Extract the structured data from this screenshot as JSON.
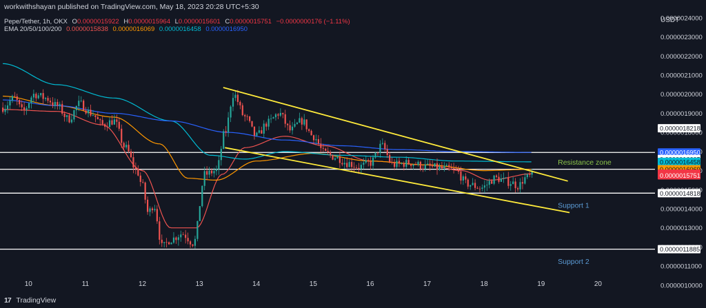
{
  "header": {
    "published": "workwithshayan published on TradingView.com, May 18, 2023 20:28 UTC+5:30",
    "symbol": "Pepe/Tether, 1h, OKX",
    "ohlc": [
      {
        "k": "O",
        "v": "0.0000015922"
      },
      {
        "k": "H",
        "v": "0.0000015964"
      },
      {
        "k": "L",
        "v": "0.0000015601"
      },
      {
        "k": "C",
        "v": "0.0000015751"
      }
    ],
    "change": "−0.0000000176 (−1.11%)",
    "ema_label": "EMA 20/50/100/200",
    "ema_values": [
      "0.0000015838",
      "0.0000016069",
      "0.0000016458",
      "0.0000016950"
    ],
    "currency": "USDT"
  },
  "footer": {
    "brand": "TradingView",
    "logo": "tradingview-logo-icon"
  },
  "colors": {
    "background": "#131722",
    "up": "#26a69a",
    "down": "#ef5350",
    "ema20": "#ef5350",
    "ema50": "#ff9800",
    "ema100": "#00bcd4",
    "ema200": "#2962ff",
    "channel": "#ffeb3b",
    "level": "#ffffff",
    "resistance_text": "#8bc34a",
    "support_text": "#5b9bd5"
  },
  "chart_data": {
    "type": "candlestick",
    "ylim": [
      1.05e-06,
      2.45e-06
    ],
    "xlim": [
      9.5,
      21.0
    ],
    "y_ticks": [
      "0.0000024000",
      "0.0000023000",
      "0.0000022000",
      "0.0000021000",
      "0.0000020000",
      "0.0000019000",
      "0.0000018000",
      "0.0000017000",
      "0.0000016000",
      "0.0000015000",
      "0.0000014000",
      "0.0000013000",
      "0.0000012000",
      "0.0000011000",
      "0.0000010000"
    ],
    "x_ticks": [
      {
        "label": "10",
        "x": 10
      },
      {
        "label": "11",
        "x": 11
      },
      {
        "label": "12",
        "x": 12
      },
      {
        "label": "13",
        "x": 13
      },
      {
        "label": "14",
        "x": 14
      },
      {
        "label": "15",
        "x": 15
      },
      {
        "label": "16",
        "x": 16
      },
      {
        "label": "17",
        "x": 17
      },
      {
        "label": "18",
        "x": 18
      },
      {
        "label": "19",
        "x": 19
      },
      {
        "label": "20",
        "x": 20
      }
    ],
    "horizontal_levels": [
      1.695e-06,
      1.6069e-06,
      1.4818e-06,
      1.1885e-06
    ],
    "annotations": [
      {
        "text": "Resistance zone",
        "x": 19.9,
        "y": 1.645e-06
      },
      {
        "text": "Support 1",
        "x": 19.9,
        "y": 1.42e-06
      },
      {
        "text": "Support 2",
        "x": 19.9,
        "y": 1.125e-06
      }
    ],
    "channel_lines": [
      {
        "x1": 13.42,
        "y1": 2.035e-06,
        "x2": 19.47,
        "y2": 1.545e-06
      },
      {
        "x1": 13.45,
        "y1": 1.72e-06,
        "x2": 19.5,
        "y2": 1.38e-06
      }
    ],
    "price_labels": [
      {
        "text": "0.0000018218",
        "y": 1.8218e-06,
        "bg": "#ffffff",
        "fg": "#131722"
      },
      {
        "text": "0.0000016950",
        "y": 1.695e-06,
        "bg": "#2962ff",
        "fg": "#ffffff"
      },
      {
        "text": "0.0000016605",
        "y": 1.6605e-06,
        "bg": "#ffffff",
        "fg": "#131722"
      },
      {
        "text": "0.0000016458",
        "y": 1.6458e-06,
        "bg": "#00bcd4",
        "fg": "#131722"
      },
      {
        "text": "0.0000016069",
        "y": 1.6069e-06,
        "bg": "#ff9800",
        "fg": "#131722"
      },
      {
        "text": "0.0000015838",
        "y": 1.5838e-06,
        "bg": "#f23645",
        "fg": "#ffffff"
      },
      {
        "text": "0.0000015751",
        "y": 1.5751e-06,
        "bg": "#f23645",
        "fg": "#ffffff"
      },
      {
        "text": "0.0000014818",
        "y": 1.4818e-06,
        "bg": "#ffffff",
        "fg": "#131722"
      },
      {
        "text": "0.0000011885",
        "y": 1.1885e-06,
        "bg": "#ffffff",
        "fg": "#131722"
      }
    ],
    "price_anchors": [
      [
        9.55,
        1.93
      ],
      [
        9.75,
        1.98
      ],
      [
        9.9,
        1.91
      ],
      [
        10.1,
        2.0
      ],
      [
        10.3,
        1.98
      ],
      [
        10.5,
        1.94
      ],
      [
        10.7,
        1.87
      ],
      [
        10.9,
        1.95
      ],
      [
        11.1,
        1.9
      ],
      [
        11.3,
        1.84
      ],
      [
        11.5,
        1.86
      ],
      [
        11.7,
        1.72
      ],
      [
        11.9,
        1.6
      ],
      [
        12.0,
        1.52
      ],
      [
        12.1,
        1.38
      ],
      [
        12.2,
        1.42
      ],
      [
        12.35,
        1.2
      ],
      [
        12.5,
        1.24
      ],
      [
        12.7,
        1.27
      ],
      [
        12.9,
        1.22
      ],
      [
        13.1,
        1.58
      ],
      [
        13.3,
        1.6
      ],
      [
        13.45,
        1.8
      ],
      [
        13.6,
        2.0
      ],
      [
        13.8,
        1.88
      ],
      [
        14.0,
        1.78
      ],
      [
        14.2,
        1.85
      ],
      [
        14.4,
        1.9
      ],
      [
        14.6,
        1.81
      ],
      [
        14.8,
        1.86
      ],
      [
        15.0,
        1.78
      ],
      [
        15.2,
        1.69
      ],
      [
        15.4,
        1.67
      ],
      [
        15.6,
        1.64
      ],
      [
        15.8,
        1.62
      ],
      [
        16.0,
        1.64
      ],
      [
        16.2,
        1.73
      ],
      [
        16.4,
        1.63
      ],
      [
        16.7,
        1.64
      ],
      [
        17.0,
        1.62
      ],
      [
        17.3,
        1.61
      ],
      [
        17.5,
        1.6
      ],
      [
        17.7,
        1.53
      ],
      [
        17.95,
        1.51
      ],
      [
        18.2,
        1.56
      ],
      [
        18.45,
        1.54
      ],
      [
        18.6,
        1.52
      ],
      [
        18.72,
        1.56
      ],
      [
        18.85,
        1.575
      ]
    ],
    "ema_series": [
      {
        "name": "EMA 20",
        "color": "#ef5350",
        "points": [
          [
            9.55,
            1.92
          ],
          [
            10.5,
            1.91
          ],
          [
            11.3,
            1.84
          ],
          [
            12.0,
            1.6
          ],
          [
            12.5,
            1.3
          ],
          [
            12.95,
            1.3
          ],
          [
            13.4,
            1.58
          ],
          [
            13.8,
            1.72
          ],
          [
            14.5,
            1.78
          ],
          [
            15.2,
            1.73
          ],
          [
            16.0,
            1.65
          ],
          [
            17.0,
            1.63
          ],
          [
            17.6,
            1.6
          ],
          [
            18.1,
            1.55
          ],
          [
            18.85,
            1.5838
          ]
        ]
      },
      {
        "name": "EMA 50",
        "color": "#ff9800",
        "points": [
          [
            9.55,
            1.99
          ],
          [
            10.5,
            1.94
          ],
          [
            11.5,
            1.88
          ],
          [
            12.3,
            1.74
          ],
          [
            12.8,
            1.56
          ],
          [
            13.3,
            1.55
          ],
          [
            14.0,
            1.65
          ],
          [
            15.0,
            1.69
          ],
          [
            16.0,
            1.65
          ],
          [
            17.0,
            1.63
          ],
          [
            18.0,
            1.6
          ],
          [
            18.85,
            1.6069
          ]
        ]
      },
      {
        "name": "EMA 100",
        "color": "#00bcd4",
        "points": [
          [
            9.55,
            2.16
          ],
          [
            10.5,
            2.05
          ],
          [
            11.5,
            1.98
          ],
          [
            12.5,
            1.86
          ],
          [
            13.2,
            1.68
          ],
          [
            13.8,
            1.66
          ],
          [
            14.5,
            1.7
          ],
          [
            15.5,
            1.68
          ],
          [
            16.5,
            1.67
          ],
          [
            17.5,
            1.65
          ],
          [
            18.85,
            1.6458
          ]
        ]
      },
      {
        "name": "EMA 200",
        "color": "#2962ff",
        "points": [
          [
            9.55,
            1.97
          ],
          [
            10.5,
            1.94
          ],
          [
            11.5,
            1.9
          ],
          [
            12.5,
            1.86
          ],
          [
            13.5,
            1.8
          ],
          [
            14.5,
            1.76
          ],
          [
            15.5,
            1.73
          ],
          [
            16.5,
            1.71
          ],
          [
            17.5,
            1.7
          ],
          [
            18.85,
            1.695
          ]
        ]
      }
    ]
  }
}
